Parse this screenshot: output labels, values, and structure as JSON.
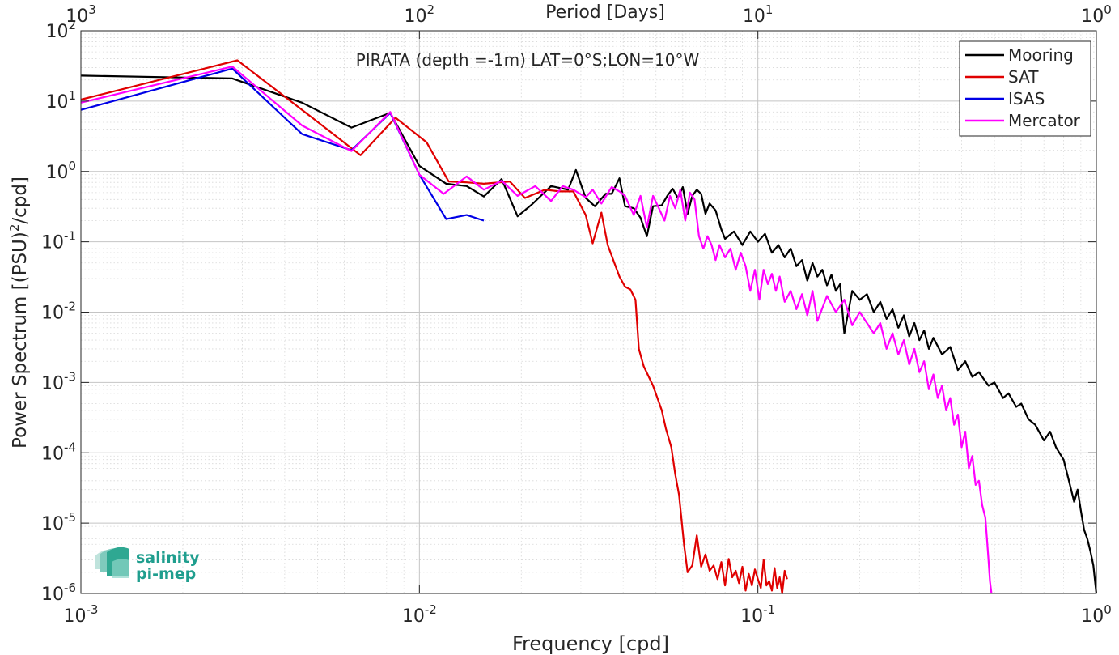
{
  "chart_data": {
    "type": "line",
    "title": "PIRATA (depth =-1m) LAT=0°S;LON=10°W",
    "xlabel": "Frequency [cpd]",
    "ylabel_main": "Power Spectrum [(PSU)",
    "ylabel_sup": "2",
    "ylabel_end": "/cpd]",
    "x2label": "Period [Days]",
    "xscale": "log",
    "yscale": "log",
    "xlim": [
      0.001,
      1
    ],
    "ylim": [
      1e-06,
      100
    ],
    "grid": true,
    "legend_position": "top-right",
    "x_ticks": [
      {
        "value": 0.001,
        "base": "10",
        "exp": "-3"
      },
      {
        "value": 0.01,
        "base": "10",
        "exp": "-2"
      },
      {
        "value": 0.1,
        "base": "10",
        "exp": "-1"
      },
      {
        "value": 1,
        "base": "10",
        "exp": "0"
      }
    ],
    "x2_ticks": [
      {
        "freq": 0.001,
        "base": "10",
        "exp": "3"
      },
      {
        "freq": 0.01,
        "base": "10",
        "exp": "2"
      },
      {
        "freq": 0.1,
        "base": "10",
        "exp": "1"
      },
      {
        "freq": 1,
        "base": "10",
        "exp": "0"
      }
    ],
    "y_ticks": [
      {
        "value": 1e-06,
        "base": "10",
        "exp": "-6"
      },
      {
        "value": 1e-05,
        "base": "10",
        "exp": "-5"
      },
      {
        "value": 0.0001,
        "base": "10",
        "exp": "-4"
      },
      {
        "value": 0.001,
        "base": "10",
        "exp": "-3"
      },
      {
        "value": 0.01,
        "base": "10",
        "exp": "-2"
      },
      {
        "value": 0.1,
        "base": "10",
        "exp": "-1"
      },
      {
        "value": 1,
        "base": "10",
        "exp": "0"
      },
      {
        "value": 10,
        "base": "10",
        "exp": "1"
      },
      {
        "value": 100,
        "base": "10",
        "exp": "2"
      }
    ],
    "series": [
      {
        "name": "Mooring",
        "color": "#000000",
        "points": [
          [
            0.001,
            23
          ],
          [
            0.0028,
            21
          ],
          [
            0.0045,
            9.5
          ],
          [
            0.0063,
            4.2
          ],
          [
            0.0082,
            6.8
          ],
          [
            0.01,
            1.2
          ],
          [
            0.012,
            0.67
          ],
          [
            0.0138,
            0.62
          ],
          [
            0.0155,
            0.44
          ],
          [
            0.0175,
            0.78
          ],
          [
            0.0195,
            0.23
          ],
          [
            0.0215,
            0.34
          ],
          [
            0.0245,
            0.62
          ],
          [
            0.0275,
            0.55
          ],
          [
            0.029,
            1.05
          ],
          [
            0.031,
            0.42
          ],
          [
            0.033,
            0.32
          ],
          [
            0.0355,
            0.48
          ],
          [
            0.037,
            0.48
          ],
          [
            0.039,
            0.8
          ],
          [
            0.0405,
            0.32
          ],
          [
            0.043,
            0.3
          ],
          [
            0.045,
            0.22
          ],
          [
            0.047,
            0.12
          ],
          [
            0.049,
            0.32
          ],
          [
            0.052,
            0.33
          ],
          [
            0.054,
            0.45
          ],
          [
            0.056,
            0.57
          ],
          [
            0.058,
            0.42
          ],
          [
            0.06,
            0.6
          ],
          [
            0.062,
            0.25
          ],
          [
            0.064,
            0.45
          ],
          [
            0.066,
            0.55
          ],
          [
            0.068,
            0.48
          ],
          [
            0.07,
            0.25
          ],
          [
            0.072,
            0.35
          ],
          [
            0.075,
            0.28
          ],
          [
            0.078,
            0.15
          ],
          [
            0.08,
            0.11
          ],
          [
            0.085,
            0.14
          ],
          [
            0.09,
            0.09
          ],
          [
            0.095,
            0.14
          ],
          [
            0.1,
            0.1
          ],
          [
            0.105,
            0.13
          ],
          [
            0.11,
            0.07
          ],
          [
            0.115,
            0.09
          ],
          [
            0.12,
            0.06
          ],
          [
            0.125,
            0.08
          ],
          [
            0.13,
            0.045
          ],
          [
            0.135,
            0.055
          ],
          [
            0.14,
            0.028
          ],
          [
            0.145,
            0.05
          ],
          [
            0.15,
            0.032
          ],
          [
            0.155,
            0.04
          ],
          [
            0.16,
            0.024
          ],
          [
            0.165,
            0.034
          ],
          [
            0.17,
            0.02
          ],
          [
            0.175,
            0.025
          ],
          [
            0.18,
            0.005
          ],
          [
            0.19,
            0.02
          ],
          [
            0.2,
            0.015
          ],
          [
            0.21,
            0.018
          ],
          [
            0.22,
            0.01
          ],
          [
            0.23,
            0.014
          ],
          [
            0.24,
            0.008
          ],
          [
            0.25,
            0.011
          ],
          [
            0.26,
            0.006
          ],
          [
            0.27,
            0.009
          ],
          [
            0.28,
            0.0045
          ],
          [
            0.29,
            0.007
          ],
          [
            0.3,
            0.004
          ],
          [
            0.31,
            0.0055
          ],
          [
            0.32,
            0.003
          ],
          [
            0.33,
            0.0043
          ],
          [
            0.35,
            0.0025
          ],
          [
            0.37,
            0.0032
          ],
          [
            0.39,
            0.0015
          ],
          [
            0.41,
            0.002
          ],
          [
            0.43,
            0.0012
          ],
          [
            0.45,
            0.0014
          ],
          [
            0.48,
            0.0009
          ],
          [
            0.5,
            0.001
          ],
          [
            0.53,
            0.0006
          ],
          [
            0.55,
            0.0007
          ],
          [
            0.58,
            0.00045
          ],
          [
            0.6,
            0.0005
          ],
          [
            0.63,
            0.0003
          ],
          [
            0.66,
            0.00025
          ],
          [
            0.7,
            0.00015
          ],
          [
            0.73,
            0.0002
          ],
          [
            0.76,
            0.00012
          ],
          [
            0.8,
            8e-05
          ],
          [
            0.83,
            4e-05
          ],
          [
            0.86,
            2e-05
          ],
          [
            0.88,
            3e-05
          ],
          [
            0.9,
            1.5e-05
          ],
          [
            0.92,
            8e-06
          ],
          [
            0.94,
            6e-06
          ],
          [
            0.96,
            4e-06
          ],
          [
            0.98,
            2.5e-06
          ],
          [
            1.0,
            1e-06
          ]
        ]
      },
      {
        "name": "SAT",
        "color": "#e00000",
        "points": [
          [
            0.001,
            10.5
          ],
          [
            0.0029,
            38
          ],
          [
            0.0045,
            7.5
          ],
          [
            0.0067,
            1.7
          ],
          [
            0.0085,
            5.8
          ],
          [
            0.0105,
            2.6
          ],
          [
            0.0122,
            0.72
          ],
          [
            0.0138,
            0.7
          ],
          [
            0.0155,
            0.67
          ],
          [
            0.0185,
            0.72
          ],
          [
            0.0205,
            0.42
          ],
          [
            0.0235,
            0.55
          ],
          [
            0.026,
            0.52
          ],
          [
            0.0285,
            0.52
          ],
          [
            0.031,
            0.24
          ],
          [
            0.0325,
            0.095
          ],
          [
            0.0345,
            0.26
          ],
          [
            0.036,
            0.09
          ],
          [
            0.039,
            0.032
          ],
          [
            0.0405,
            0.023
          ],
          [
            0.042,
            0.021
          ],
          [
            0.0435,
            0.015
          ],
          [
            0.0445,
            0.003
          ],
          [
            0.046,
            0.0017
          ],
          [
            0.049,
            0.0009
          ],
          [
            0.052,
            0.0004
          ],
          [
            0.0535,
            0.00022
          ],
          [
            0.0555,
            0.00012
          ],
          [
            0.057,
            5e-05
          ],
          [
            0.0585,
            2.5e-05
          ],
          [
            0.0605,
            5e-06
          ],
          [
            0.062,
            2e-06
          ],
          [
            0.064,
            2.5e-06
          ],
          [
            0.066,
            6.7e-06
          ],
          [
            0.068,
            2.4e-06
          ],
          [
            0.07,
            3.6e-06
          ],
          [
            0.072,
            2.1e-06
          ],
          [
            0.074,
            2.5e-06
          ],
          [
            0.076,
            1.6e-06
          ],
          [
            0.078,
            2.8e-06
          ],
          [
            0.08,
            1.3e-06
          ],
          [
            0.082,
            3.1e-06
          ],
          [
            0.084,
            1.7e-06
          ],
          [
            0.086,
            2.1e-06
          ],
          [
            0.088,
            1.4e-06
          ],
          [
            0.09,
            2.4e-06
          ],
          [
            0.092,
            1.1e-06
          ],
          [
            0.094,
            1.9e-06
          ],
          [
            0.096,
            1.3e-06
          ],
          [
            0.098,
            2.2e-06
          ],
          [
            0.1,
            1.6e-06
          ],
          [
            0.102,
            1.2e-06
          ],
          [
            0.104,
            3e-06
          ],
          [
            0.106,
            1.3e-06
          ],
          [
            0.108,
            1.5e-06
          ],
          [
            0.11,
            1.1e-06
          ],
          [
            0.112,
            2.3e-06
          ],
          [
            0.114,
            1.2e-06
          ],
          [
            0.116,
            1.7e-06
          ],
          [
            0.118,
            1e-06
          ],
          [
            0.12,
            2.1e-06
          ],
          [
            0.122,
            1.6e-06
          ]
        ]
      },
      {
        "name": "ISAS",
        "color": "#0000e6",
        "points": [
          [
            0.001,
            7.5
          ],
          [
            0.0028,
            29
          ],
          [
            0.0045,
            3.4
          ],
          [
            0.0063,
            2.0
          ],
          [
            0.0082,
            6.8
          ],
          [
            0.01,
            0.9
          ],
          [
            0.012,
            0.21
          ],
          [
            0.0138,
            0.24
          ],
          [
            0.0155,
            0.2
          ]
        ]
      },
      {
        "name": "Mercator",
        "color": "#ff00ff",
        "points": [
          [
            0.001,
            9.5
          ],
          [
            0.0028,
            31
          ],
          [
            0.0045,
            4.5
          ],
          [
            0.0063,
            1.95
          ],
          [
            0.0082,
            7.0
          ],
          [
            0.01,
            0.9
          ],
          [
            0.0118,
            0.48
          ],
          [
            0.0138,
            0.85
          ],
          [
            0.0155,
            0.55
          ],
          [
            0.0175,
            0.74
          ],
          [
            0.0195,
            0.45
          ],
          [
            0.022,
            0.62
          ],
          [
            0.0245,
            0.38
          ],
          [
            0.0265,
            0.62
          ],
          [
            0.0285,
            0.55
          ],
          [
            0.031,
            0.43
          ],
          [
            0.0325,
            0.55
          ],
          [
            0.0345,
            0.35
          ],
          [
            0.037,
            0.6
          ],
          [
            0.039,
            0.52
          ],
          [
            0.0405,
            0.45
          ],
          [
            0.043,
            0.24
          ],
          [
            0.045,
            0.45
          ],
          [
            0.047,
            0.16
          ],
          [
            0.049,
            0.45
          ],
          [
            0.051,
            0.3
          ],
          [
            0.053,
            0.2
          ],
          [
            0.055,
            0.45
          ],
          [
            0.057,
            0.3
          ],
          [
            0.059,
            0.55
          ],
          [
            0.061,
            0.2
          ],
          [
            0.063,
            0.5
          ],
          [
            0.065,
            0.4
          ],
          [
            0.067,
            0.12
          ],
          [
            0.069,
            0.08
          ],
          [
            0.071,
            0.12
          ],
          [
            0.073,
            0.09
          ],
          [
            0.075,
            0.055
          ],
          [
            0.077,
            0.09
          ],
          [
            0.08,
            0.06
          ],
          [
            0.083,
            0.08
          ],
          [
            0.086,
            0.04
          ],
          [
            0.089,
            0.07
          ],
          [
            0.092,
            0.045
          ],
          [
            0.095,
            0.02
          ],
          [
            0.098,
            0.04
          ],
          [
            0.101,
            0.015
          ],
          [
            0.104,
            0.04
          ],
          [
            0.107,
            0.025
          ],
          [
            0.11,
            0.035
          ],
          [
            0.113,
            0.02
          ],
          [
            0.116,
            0.032
          ],
          [
            0.12,
            0.014
          ],
          [
            0.125,
            0.02
          ],
          [
            0.13,
            0.011
          ],
          [
            0.135,
            0.018
          ],
          [
            0.14,
            0.009
          ],
          [
            0.145,
            0.02
          ],
          [
            0.15,
            0.0075
          ],
          [
            0.16,
            0.017
          ],
          [
            0.17,
            0.01
          ],
          [
            0.18,
            0.015
          ],
          [
            0.19,
            0.0065
          ],
          [
            0.2,
            0.01
          ],
          [
            0.21,
            0.007
          ],
          [
            0.22,
            0.005
          ],
          [
            0.23,
            0.007
          ],
          [
            0.24,
            0.003
          ],
          [
            0.25,
            0.005
          ],
          [
            0.26,
            0.0025
          ],
          [
            0.27,
            0.004
          ],
          [
            0.28,
            0.0018
          ],
          [
            0.29,
            0.003
          ],
          [
            0.3,
            0.0014
          ],
          [
            0.31,
            0.002
          ],
          [
            0.32,
            0.0008
          ],
          [
            0.33,
            0.0013
          ],
          [
            0.34,
            0.0006
          ],
          [
            0.35,
            0.0009
          ],
          [
            0.36,
            0.0004
          ],
          [
            0.37,
            0.0006
          ],
          [
            0.38,
            0.00025
          ],
          [
            0.39,
            0.00035
          ],
          [
            0.4,
            0.00012
          ],
          [
            0.41,
            0.0002
          ],
          [
            0.42,
            6e-05
          ],
          [
            0.43,
            9e-05
          ],
          [
            0.44,
            3.5e-05
          ],
          [
            0.45,
            4e-05
          ],
          [
            0.46,
            1.8e-05
          ],
          [
            0.47,
            1.2e-05
          ],
          [
            0.475,
            6e-06
          ],
          [
            0.48,
            3e-06
          ],
          [
            0.485,
            1.5e-06
          ],
          [
            0.49,
            1e-06
          ]
        ]
      }
    ]
  },
  "logo": {
    "line1": "salinity",
    "line2": "pi-mep",
    "color": "#1f9e8e"
  }
}
